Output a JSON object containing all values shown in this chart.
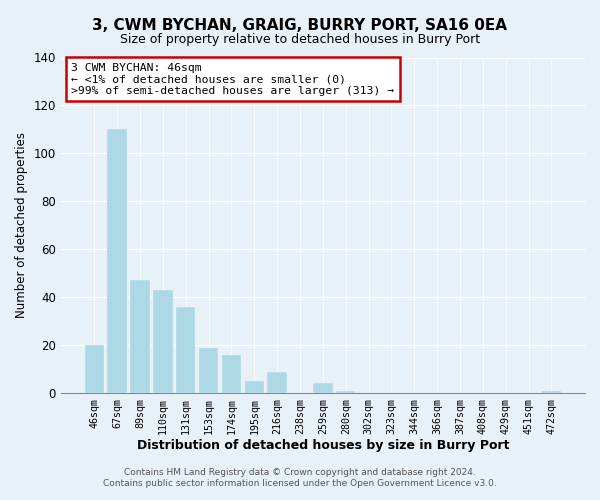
{
  "title": "3, CWM BYCHAN, GRAIG, BURRY PORT, SA16 0EA",
  "subtitle": "Size of property relative to detached houses in Burry Port",
  "xlabel": "Distribution of detached houses by size in Burry Port",
  "ylabel": "Number of detached properties",
  "bar_labels": [
    "46sqm",
    "67sqm",
    "89sqm",
    "110sqm",
    "131sqm",
    "153sqm",
    "174sqm",
    "195sqm",
    "216sqm",
    "238sqm",
    "259sqm",
    "280sqm",
    "302sqm",
    "323sqm",
    "344sqm",
    "366sqm",
    "387sqm",
    "408sqm",
    "429sqm",
    "451sqm",
    "472sqm"
  ],
  "bar_values": [
    20,
    110,
    47,
    43,
    36,
    19,
    16,
    5,
    9,
    0,
    4,
    1,
    0,
    0,
    0,
    0,
    0,
    0,
    0,
    0,
    1
  ],
  "highlight_index": 0,
  "highlight_color": "#c8d8e8",
  "bar_color": "#add8e6",
  "ylim": [
    0,
    140
  ],
  "yticks": [
    0,
    20,
    40,
    60,
    80,
    100,
    120,
    140
  ],
  "annotation_title": "3 CWM BYCHAN: 46sqm",
  "annotation_line1": "← <1% of detached houses are smaller (0)",
  "annotation_line2": ">99% of semi-detached houses are larger (313) →",
  "annotation_box_color": "#ffffff",
  "annotation_box_edgecolor": "#cc0000",
  "footer_line1": "Contains HM Land Registry data © Crown copyright and database right 2024.",
  "footer_line2": "Contains public sector information licensed under the Open Government Licence v3.0.",
  "bg_color": "#e8f0f8",
  "grid_color": "#c8d4e0",
  "title_fontsize": 11,
  "subtitle_fontsize": 9
}
